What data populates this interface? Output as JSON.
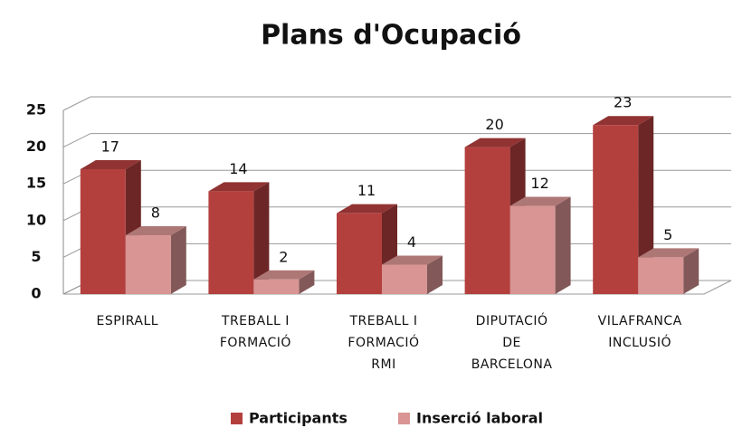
{
  "chart_data": {
    "type": "bar3d",
    "title": "Plans d'Ocupació",
    "categories": [
      "ESPIRALL",
      "TREBALL I\nFORMACIÓ",
      "TREBALL I\nFORMACIÓ\nRMI",
      "DIPUTACIÓ\nDE\nBARCELONA",
      "VILAFRANCA\nINCLUSIÓ"
    ],
    "series": [
      {
        "name": "Participants",
        "color": "#b4403e",
        "values": [
          17,
          14,
          11,
          20,
          23
        ]
      },
      {
        "name": "Inserció laboral",
        "color": "#d89593",
        "values": [
          8,
          2,
          4,
          12,
          5
        ]
      }
    ],
    "ylim": [
      0,
      25
    ],
    "yticks": [
      0,
      5,
      10,
      15,
      20,
      25
    ],
    "grid": true,
    "legend": "bottom"
  }
}
